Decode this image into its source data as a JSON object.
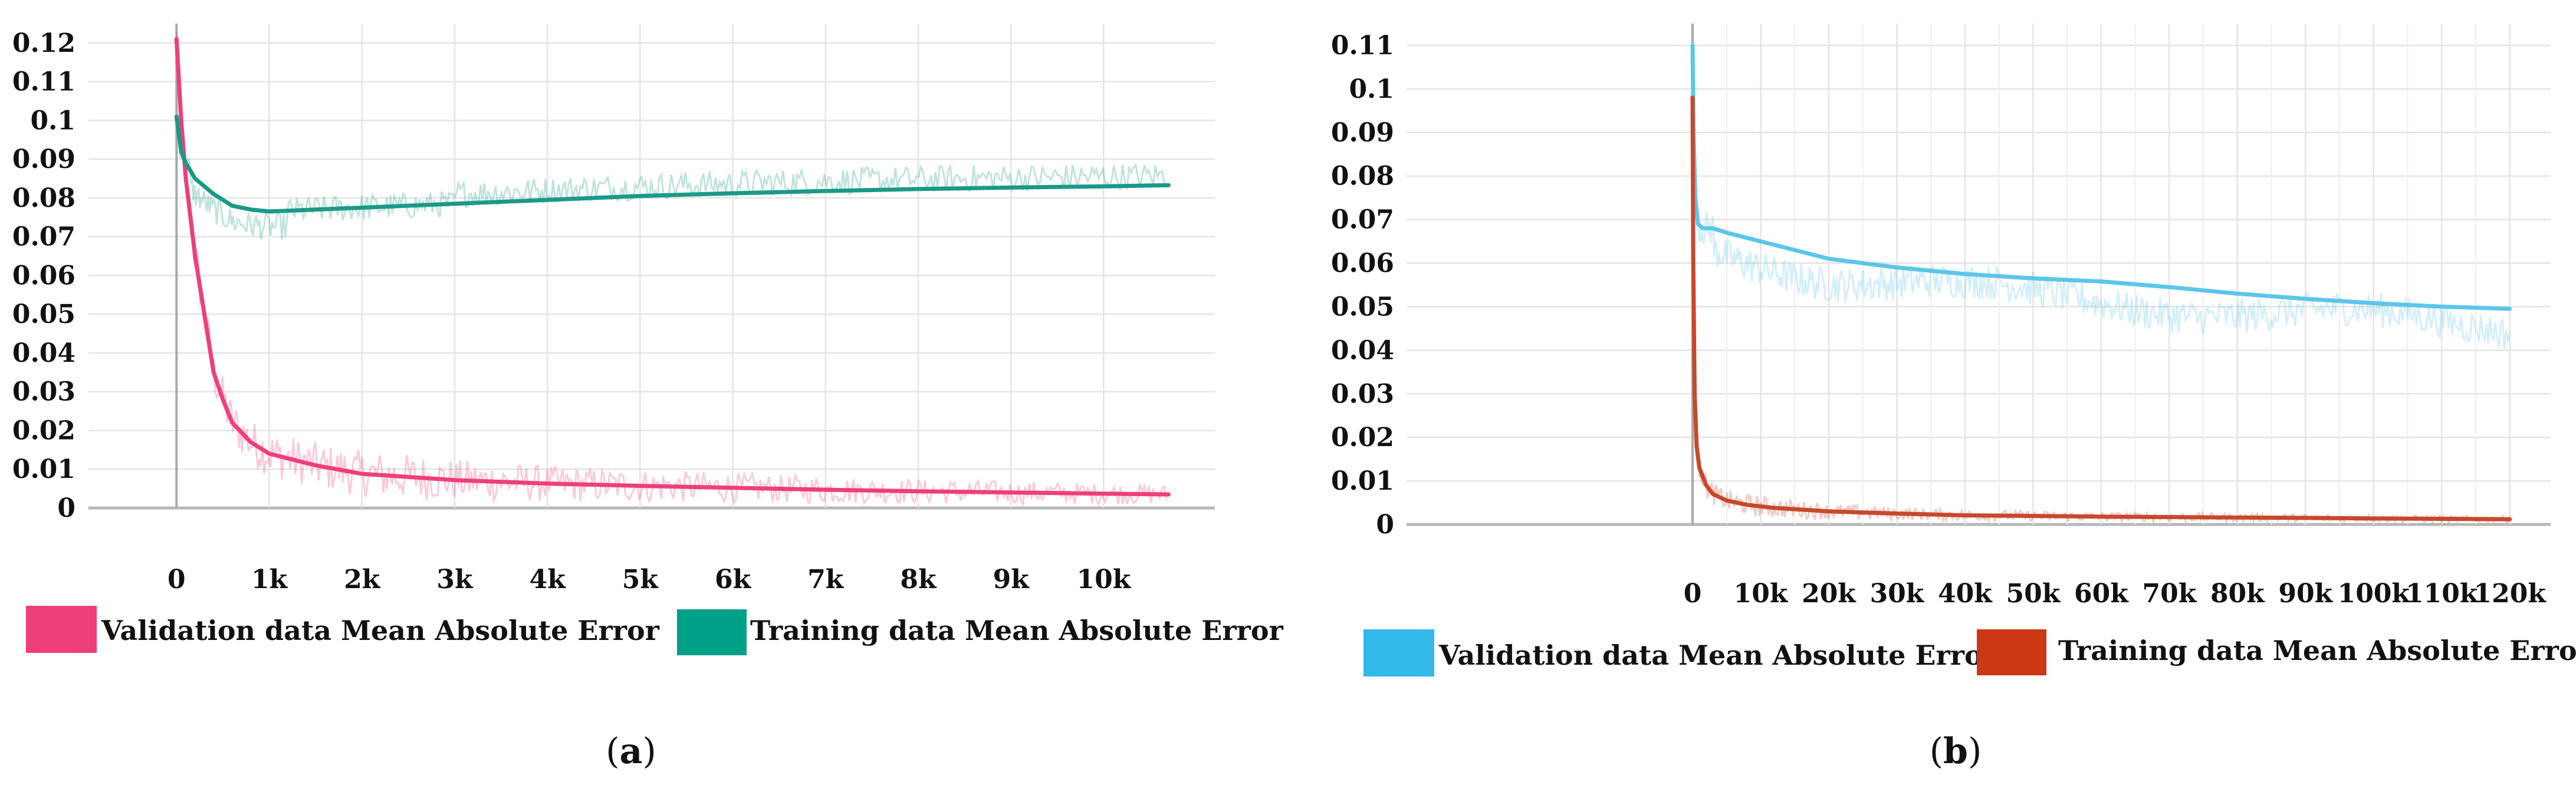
{
  "chart_data": [
    {
      "type": "line",
      "panel_label": "a",
      "ylim": [
        0,
        0.125
      ],
      "xlim": [
        -950,
        11200
      ],
      "yticks": [
        "0",
        "0.01",
        "0.02",
        "0.03",
        "0.04",
        "0.05",
        "0.06",
        "0.07",
        "0.08",
        "0.09",
        "0.1",
        "0.11",
        "0.12"
      ],
      "xticks": [
        "0",
        "1k",
        "2k",
        "3k",
        "4k",
        "5k",
        "6k",
        "7k",
        "8k",
        "9k",
        "10k"
      ],
      "grid": true,
      "legend_position": "bottom",
      "series": [
        {
          "name": "Validation data Mean Absolute Error",
          "color": "#ee3f7b",
          "x": [
            0,
            50,
            100,
            200,
            300,
            400,
            500,
            600,
            800,
            1000,
            1500,
            2000,
            3000,
            4000,
            5000,
            6000,
            7000,
            8000,
            9000,
            10000,
            10700
          ],
          "y": [
            0.121,
            0.1,
            0.085,
            0.065,
            0.05,
            0.035,
            0.028,
            0.022,
            0.017,
            0.014,
            0.011,
            0.0088,
            0.0072,
            0.0063,
            0.0057,
            0.0052,
            0.0047,
            0.0043,
            0.004,
            0.0037,
            0.0035
          ]
        },
        {
          "name": "Training data Mean Absolute Error",
          "color": "#1a9a86",
          "x": [
            0,
            50,
            100,
            200,
            400,
            600,
            800,
            1000,
            1500,
            2000,
            3000,
            4000,
            5000,
            6000,
            7000,
            8000,
            9000,
            10000,
            10700
          ],
          "y": [
            0.101,
            0.092,
            0.089,
            0.085,
            0.081,
            0.078,
            0.077,
            0.0765,
            0.077,
            0.0775,
            0.0785,
            0.0795,
            0.0805,
            0.0812,
            0.0818,
            0.0823,
            0.0827,
            0.083,
            0.0833
          ]
        }
      ]
    },
    {
      "type": "line",
      "panel_label": "b",
      "ylim": [
        0,
        0.115
      ],
      "xlim": [
        -42000,
        126000
      ],
      "yticks": [
        "0",
        "0.01",
        "0.02",
        "0.03",
        "0.04",
        "0.05",
        "0.06",
        "0.07",
        "0.08",
        "0.09",
        "0.1",
        "0.11"
      ],
      "xticks": [
        "0",
        "10k",
        "20k",
        "30k",
        "40k",
        "50k",
        "60k",
        "70k",
        "80k",
        "90k",
        "100k",
        "110k",
        "120k"
      ],
      "grid": true,
      "legend_position": "bottom",
      "series": [
        {
          "name": "Validation data Mean Absolute Error",
          "color": "#5cc6ea",
          "x": [
            0,
            150,
            400,
            800,
            1500,
            3000,
            5000,
            10000,
            20000,
            30000,
            40000,
            50000,
            60000,
            70000,
            80000,
            90000,
            100000,
            110000,
            120000
          ],
          "y": [
            0.11,
            0.09,
            0.075,
            0.069,
            0.068,
            0.068,
            0.067,
            0.065,
            0.061,
            0.059,
            0.0575,
            0.0565,
            0.0558,
            0.0545,
            0.053,
            0.0518,
            0.0508,
            0.05,
            0.0495
          ]
        },
        {
          "name": "Training data Mean Absolute Error",
          "color": "#c8482c",
          "x": [
            0,
            100,
            300,
            600,
            1000,
            2000,
            3000,
            5000,
            8000,
            12000,
            20000,
            30000,
            40000,
            60000,
            80000,
            100000,
            120000
          ],
          "y": [
            0.098,
            0.06,
            0.03,
            0.018,
            0.013,
            0.009,
            0.007,
            0.0055,
            0.0045,
            0.0038,
            0.003,
            0.0025,
            0.0021,
            0.0018,
            0.0016,
            0.0014,
            0.0012
          ]
        }
      ]
    }
  ],
  "legends": {
    "a": {
      "swatch_colors": [
        "#ee3f7b",
        "#009f87"
      ],
      "items": [
        "Validation data Mean Absolute Error",
        "Training data Mean Absolute Error"
      ]
    },
    "b": {
      "swatch_colors": [
        "#33b9ea",
        "#cc3716"
      ],
      "items": [
        "Validation data Mean Absolute Error",
        "Training data Mean Absolute Error"
      ]
    }
  },
  "captions": {
    "a": "a",
    "b": "b"
  }
}
